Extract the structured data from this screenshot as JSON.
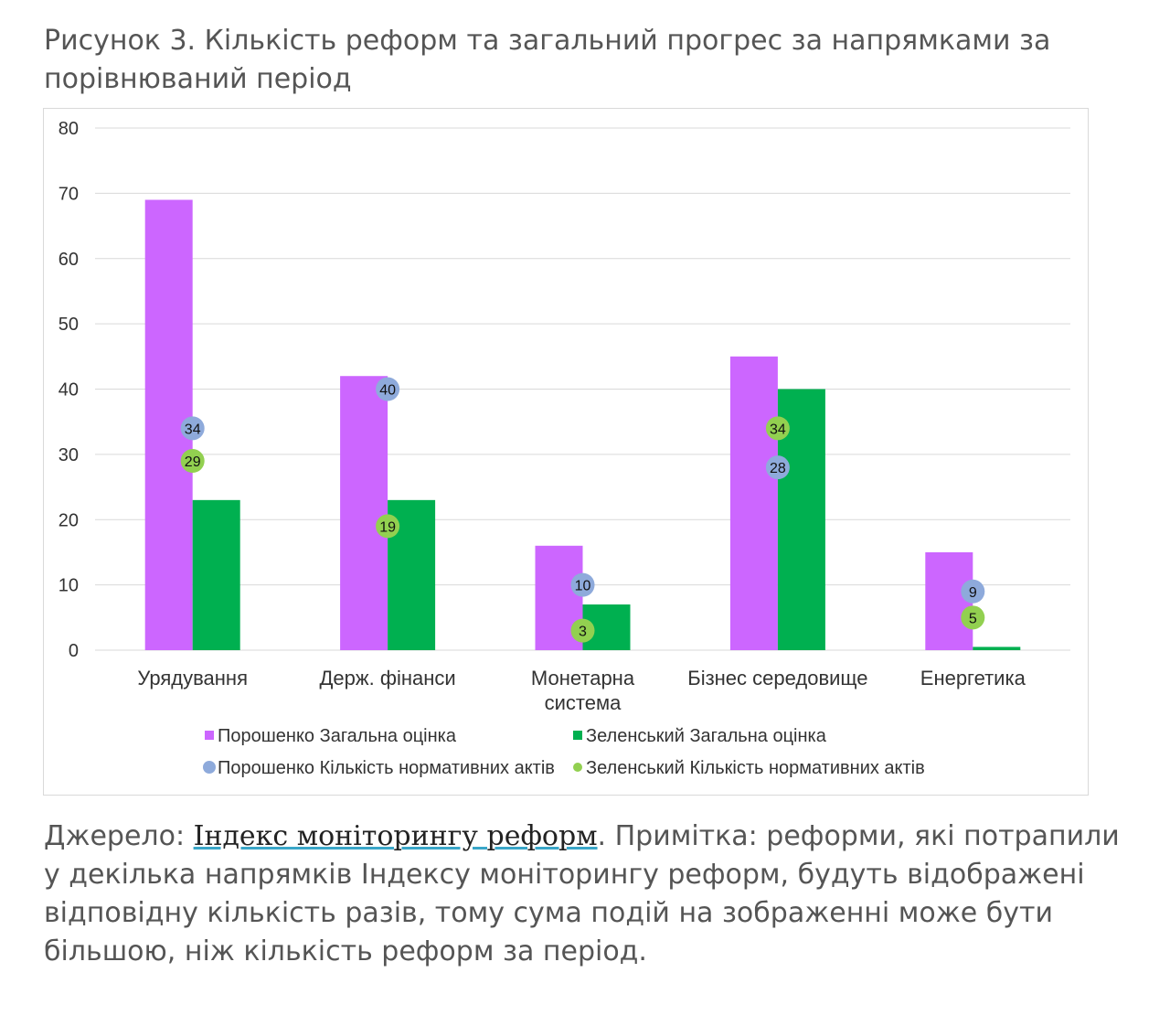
{
  "title": "Рисунок 3. Кількість реформ та загальний прогрес за напрямками за порівнюваний період",
  "chart_data": {
    "type": "bar",
    "title": "",
    "xlabel": "",
    "ylabel": "",
    "ylim": [
      0,
      80
    ],
    "yticks": [
      0,
      10,
      20,
      30,
      40,
      50,
      60,
      70,
      80
    ],
    "grid": true,
    "legend_placement": "bottom",
    "categories": [
      "Урядування",
      "Держ. фінанси",
      "Монетарна система",
      "Бізнес середовище",
      "Енергетика"
    ],
    "series": [
      {
        "name": "Порошенко Загальна оцінка",
        "kind": "bar",
        "color": "#cc66ff",
        "values": [
          69,
          42,
          16,
          45,
          15
        ]
      },
      {
        "name": "Зеленський Загальна оцінка",
        "kind": "bar",
        "color": "#00b050",
        "values": [
          23,
          23,
          7,
          40,
          0.5
        ]
      },
      {
        "name": "Порошенко Кількість нормативних актів",
        "kind": "scatter",
        "color": "#8eaadb",
        "values": [
          34,
          40,
          10,
          28,
          9
        ]
      },
      {
        "name": "Зеленський Кількість нормативних актів",
        "kind": "scatter",
        "color": "#92d050",
        "values": [
          29,
          19,
          3,
          34,
          5
        ]
      }
    ]
  },
  "caption": {
    "prefix": "Джерело: ",
    "link": "Індекс моніторингу реформ",
    "suffix": ". Примітка: реформи, які потрапили у декілька напрямків Індексу моніторингу реформ, будуть відображені відповідну кількість разів, тому сума подій на зображенні може бути більшою, ніж кількість реформ за період."
  }
}
